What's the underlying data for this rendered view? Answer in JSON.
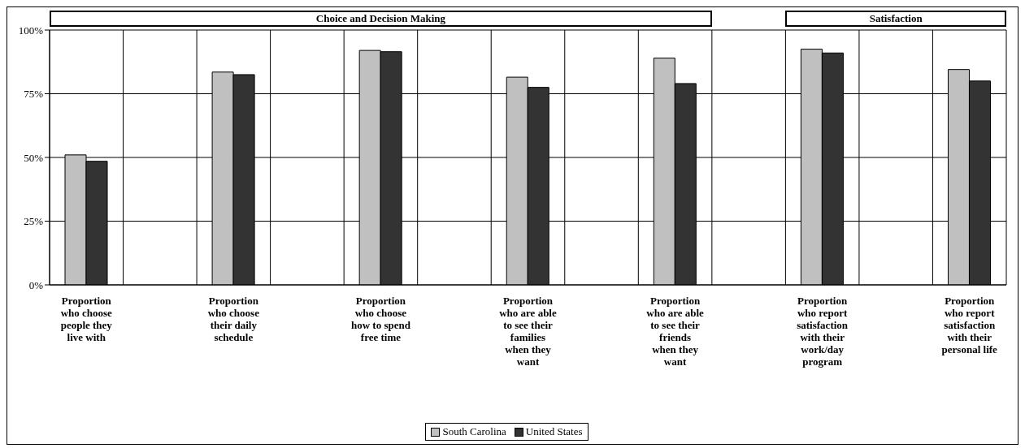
{
  "chart_data": {
    "type": "bar",
    "categories": [
      "Proportion\nwho choose\npeople they\nlive with",
      null,
      "Proportion\nwho choose\ntheir daily\nschedule",
      null,
      "Proportion\nwho choose\nhow to spend\nfree time",
      null,
      "Proportion\nwho are able\nto see their\nfamilies\nwhen they\nwant",
      null,
      "Proportion\nwho are able\nto see their\nfriends\nwhen they\nwant",
      null,
      "Proportion\nwho report\nsatisfaction\nwith their\nwork/day\nprogram",
      null,
      "Proportion\nwho report\nsatisfaction\nwith their\npersonal life"
    ],
    "series": [
      {
        "name": "South Carolina",
        "color": "#c0c0c0",
        "values": [
          51,
          null,
          83.5,
          null,
          92,
          null,
          81.5,
          null,
          89,
          null,
          92.5,
          null,
          84.5
        ]
      },
      {
        "name": "United States",
        "color": "#333333",
        "values": [
          48.5,
          null,
          82.5,
          null,
          91.5,
          null,
          77.5,
          null,
          79,
          null,
          91,
          null,
          80
        ]
      }
    ],
    "ylim": [
      0,
      100
    ],
    "yticks": [
      {
        "value": 0,
        "label": "0%"
      },
      {
        "value": 25,
        "label": "25%"
      },
      {
        "value": 50,
        "label": "50%"
      },
      {
        "value": 75,
        "label": "75%"
      },
      {
        "value": 100,
        "label": "100%"
      }
    ],
    "grid": true,
    "legend": "bottom",
    "annotations": [
      "Choice and Decision Making",
      "Satisfaction"
    ]
  }
}
